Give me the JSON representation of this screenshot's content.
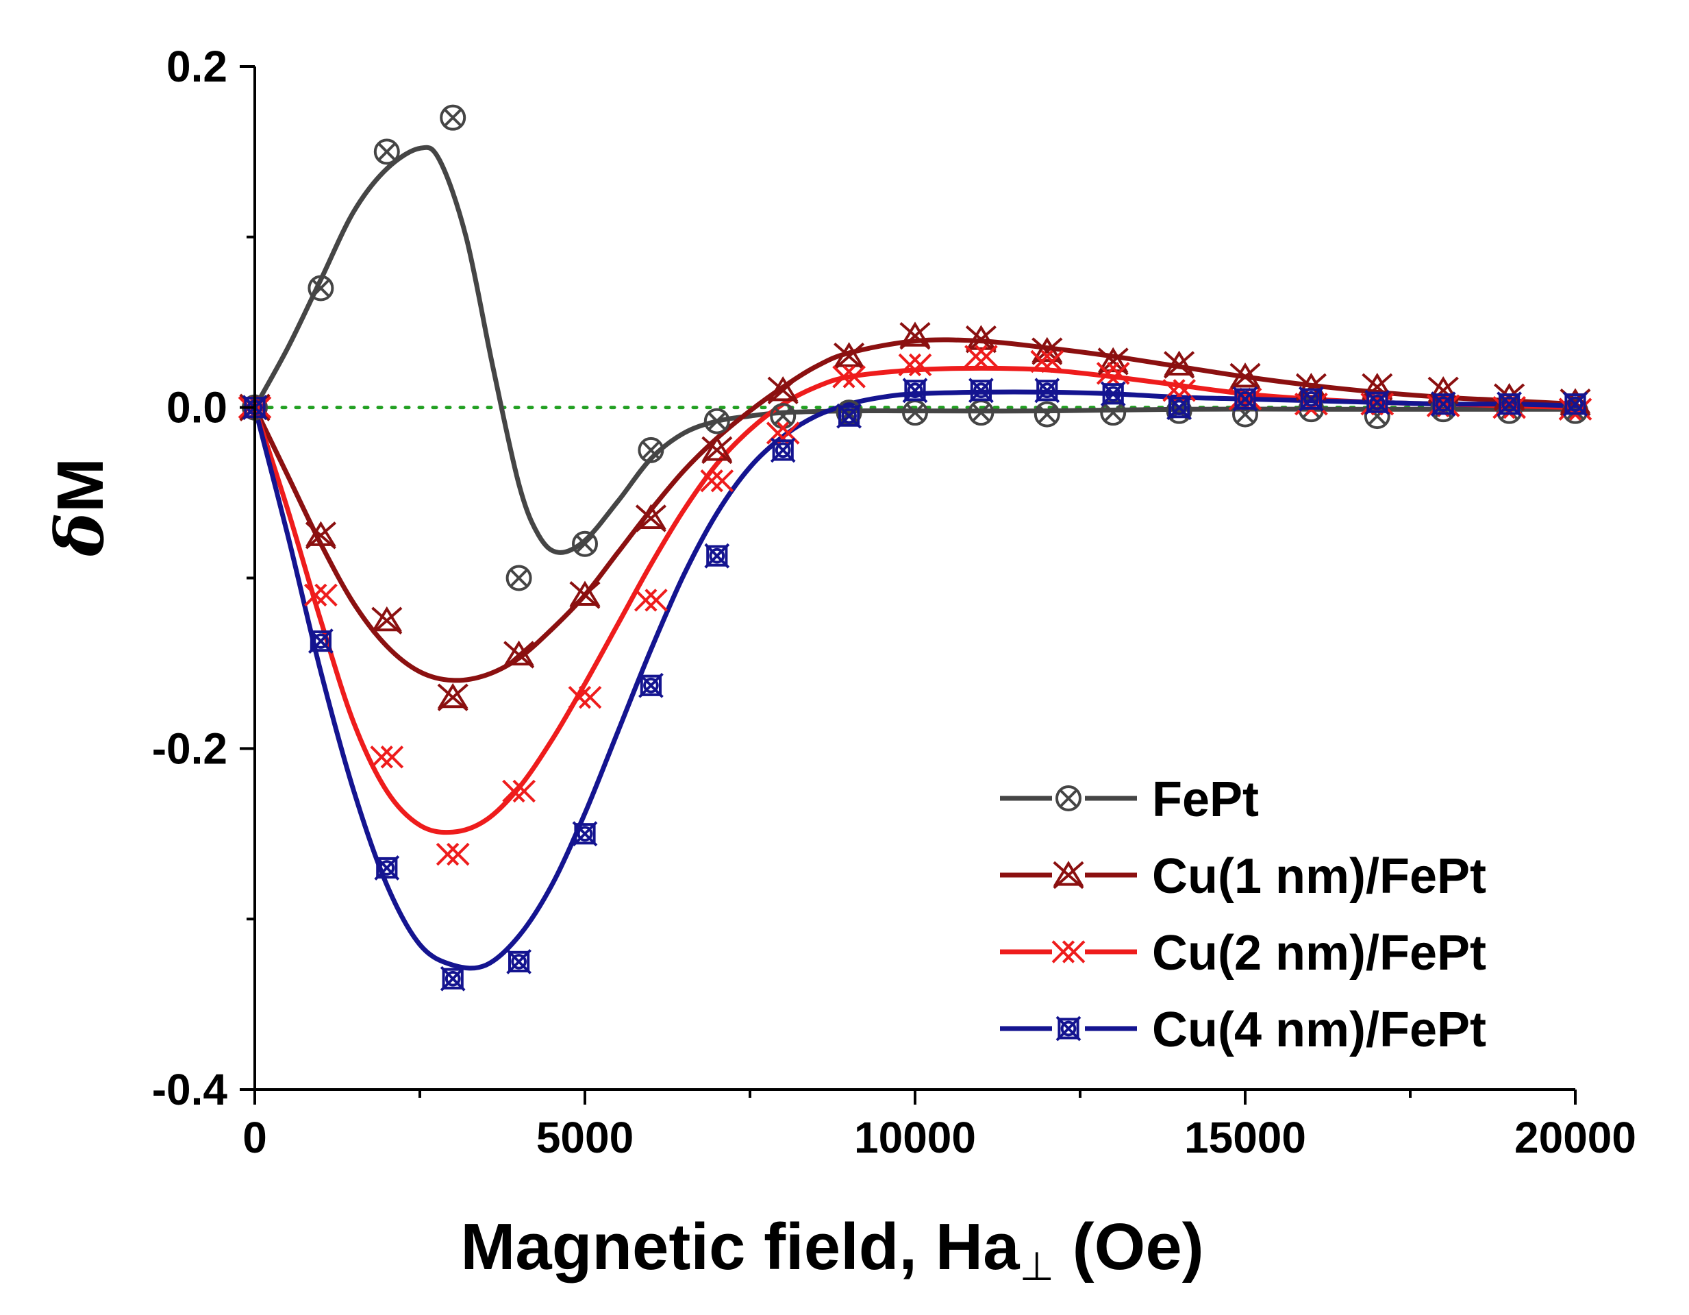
{
  "chart_data": {
    "type": "line",
    "xlabel": "Magnetic field, Ha",
    "xlabel_subscript": "⊥",
    "xlabel_unit": " (Oe)",
    "ylabel_italic": "δ",
    "ylabel_main": "M",
    "xlim": [
      0,
      20000
    ],
    "ylim": [
      -0.4,
      0.2
    ],
    "x_ticks": [
      0,
      5000,
      10000,
      15000,
      20000
    ],
    "x_tick_labels": [
      "0",
      "5000",
      "10000",
      "15000",
      "20000"
    ],
    "y_ticks": [
      0.2,
      0.0,
      -0.2,
      -0.4
    ],
    "y_tick_labels": [
      "0.2",
      "0.0",
      "-0.2",
      "-0.4"
    ],
    "x_minor_ticks": [
      2500,
      7500,
      12500,
      17500
    ],
    "y_minor_ticks": [
      0.1,
      -0.1,
      -0.3
    ],
    "grid": false,
    "reference_line": {
      "y": 0.0,
      "color": "#22a022",
      "style": "dotted"
    },
    "legend_position": "bottom-right",
    "series": [
      {
        "name": "FePt",
        "color": "#454545",
        "marker": "circle-x",
        "points_x": [
          0,
          1000,
          2000,
          3000,
          4000,
          5000,
          6000,
          7000,
          8000,
          9000,
          10000,
          11000,
          12000,
          13000,
          14000,
          15000,
          16000,
          17000,
          18000,
          19000,
          20000
        ],
        "points_y": [
          0.0,
          0.07,
          0.15,
          0.17,
          -0.1,
          -0.08,
          -0.025,
          -0.008,
          -0.005,
          -0.003,
          -0.003,
          -0.003,
          -0.004,
          -0.003,
          -0.002,
          -0.004,
          -0.001,
          -0.005,
          -0.001,
          -0.002,
          -0.002
        ],
        "curve_x": [
          0,
          500,
          1000,
          1500,
          2000,
          2500,
          2800,
          3200,
          3600,
          4000,
          4300,
          4600,
          5000,
          5500,
          6000,
          6500,
          7000,
          7500,
          8000,
          9000,
          10000,
          12000,
          14000,
          16000,
          18000,
          20000
        ],
        "curve_y": [
          0.0,
          0.035,
          0.075,
          0.115,
          0.14,
          0.152,
          0.145,
          0.1,
          0.025,
          -0.045,
          -0.075,
          -0.085,
          -0.078,
          -0.055,
          -0.03,
          -0.015,
          -0.008,
          -0.005,
          -0.003,
          -0.002,
          -0.002,
          -0.002,
          -0.001,
          -0.001,
          -0.001,
          -0.001
        ]
      },
      {
        "name": "Cu(1 nm)/FePt",
        "color": "#8b1010",
        "marker": "triangle-x",
        "points_x": [
          0,
          1000,
          2000,
          3000,
          4000,
          5000,
          6000,
          7000,
          8000,
          9000,
          10000,
          11000,
          12000,
          13000,
          14000,
          15000,
          16000,
          17000,
          18000,
          19000,
          20000
        ],
        "points_y": [
          0.0,
          -0.075,
          -0.125,
          -0.17,
          -0.145,
          -0.11,
          -0.065,
          -0.025,
          0.01,
          0.03,
          0.042,
          0.04,
          0.033,
          0.027,
          0.025,
          0.018,
          0.012,
          0.012,
          0.01,
          0.006,
          0.003
        ],
        "curve_x": [
          0,
          500,
          1000,
          1500,
          2000,
          2500,
          3000,
          3500,
          4000,
          4500,
          5000,
          5500,
          6000,
          6500,
          7000,
          7500,
          8000,
          8500,
          9000,
          10000,
          11000,
          12000,
          13000,
          14000,
          15000,
          16000,
          17000,
          18000,
          19000,
          20000
        ],
        "curve_y": [
          0.0,
          -0.04,
          -0.08,
          -0.115,
          -0.14,
          -0.155,
          -0.16,
          -0.157,
          -0.147,
          -0.13,
          -0.11,
          -0.085,
          -0.06,
          -0.037,
          -0.018,
          -0.002,
          0.012,
          0.024,
          0.032,
          0.039,
          0.039,
          0.035,
          0.03,
          0.024,
          0.018,
          0.013,
          0.009,
          0.006,
          0.004,
          0.002
        ]
      },
      {
        "name": "Cu(2 nm)/FePt",
        "color": "#ee1c1c",
        "marker": "double-x",
        "points_x": [
          0,
          1000,
          2000,
          3000,
          4000,
          5000,
          6000,
          7000,
          8000,
          9000,
          10000,
          11000,
          12000,
          13000,
          14000,
          15000,
          16000,
          17000,
          18000,
          19000,
          20000
        ],
        "points_y": [
          0.0,
          -0.11,
          -0.205,
          -0.262,
          -0.225,
          -0.17,
          -0.113,
          -0.043,
          -0.015,
          0.018,
          0.025,
          0.03,
          0.027,
          0.02,
          0.01,
          0.005,
          0.002,
          0.002,
          0.001,
          0.0,
          -0.001
        ],
        "curve_x": [
          0,
          500,
          1000,
          1500,
          2000,
          2500,
          3000,
          3500,
          4000,
          4500,
          5000,
          5500,
          6000,
          6500,
          7000,
          7500,
          8000,
          8500,
          9000,
          10000,
          11000,
          12000,
          13000,
          14000,
          15000,
          16000,
          17000,
          18000,
          19000,
          20000
        ],
        "curve_y": [
          0.0,
          -0.06,
          -0.125,
          -0.185,
          -0.225,
          -0.245,
          -0.249,
          -0.242,
          -0.223,
          -0.195,
          -0.162,
          -0.127,
          -0.092,
          -0.06,
          -0.033,
          -0.013,
          0.002,
          0.012,
          0.018,
          0.022,
          0.023,
          0.022,
          0.018,
          0.013,
          0.008,
          0.005,
          0.003,
          0.002,
          0.001,
          0.0
        ]
      },
      {
        "name": "Cu(4 nm)/FePt",
        "color": "#141490",
        "marker": "square-x",
        "points_x": [
          0,
          1000,
          2000,
          3000,
          4000,
          5000,
          6000,
          7000,
          8000,
          9000,
          10000,
          11000,
          12000,
          13000,
          14000,
          15000,
          16000,
          17000,
          18000,
          19000,
          20000
        ],
        "points_y": [
          0.0,
          -0.137,
          -0.27,
          -0.335,
          -0.325,
          -0.25,
          -0.163,
          -0.087,
          -0.025,
          -0.005,
          0.01,
          0.01,
          0.01,
          0.008,
          0.0,
          0.005,
          0.005,
          0.003,
          0.002,
          0.002,
          0.002
        ],
        "curve_x": [
          0,
          500,
          1000,
          1500,
          2000,
          2500,
          3000,
          3500,
          4000,
          4500,
          5000,
          5500,
          6000,
          6500,
          7000,
          7500,
          8000,
          8500,
          9000,
          9500,
          10000,
          11000,
          12000,
          13000,
          14000,
          15000,
          16000,
          17000,
          18000,
          19000,
          20000
        ],
        "curve_y": [
          0.0,
          -0.075,
          -0.155,
          -0.225,
          -0.28,
          -0.315,
          -0.327,
          -0.327,
          -0.31,
          -0.28,
          -0.238,
          -0.19,
          -0.142,
          -0.098,
          -0.062,
          -0.035,
          -0.017,
          -0.005,
          0.002,
          0.006,
          0.008,
          0.009,
          0.009,
          0.008,
          0.006,
          0.005,
          0.004,
          0.003,
          0.002,
          0.002,
          0.001
        ]
      }
    ]
  }
}
